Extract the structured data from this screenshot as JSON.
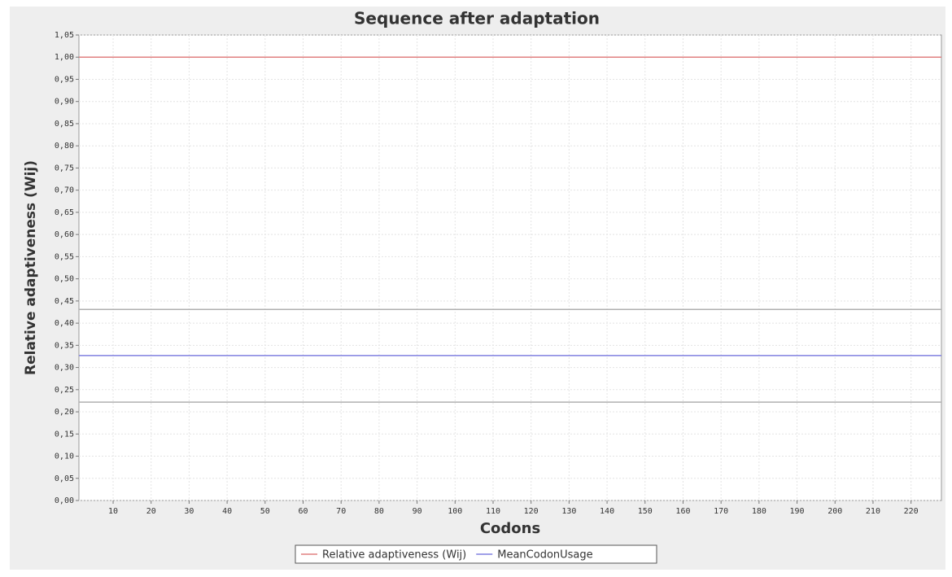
{
  "chart_data": {
    "type": "line",
    "title": "Sequence after adaptation",
    "x_label": "Codons",
    "y_label": "Relative adaptiveness (Wij)",
    "x": [
      1,
      228
    ],
    "series": [
      {
        "name": "Relative adaptiveness (Wij)",
        "color": "#e08080",
        "values": [
          1.0,
          1.0
        ]
      },
      {
        "name": "MeanCodonUsage",
        "color": "#8080e0",
        "values": [
          0.327,
          0.327
        ]
      },
      {
        "color": "#b0b0b0",
        "values": [
          0.431,
          0.431
        ]
      },
      {
        "color": "#b0b0b0",
        "values": [
          0.222,
          0.222
        ]
      }
    ],
    "xlim": [
      1,
      228
    ],
    "xticks": [
      10,
      20,
      30,
      40,
      50,
      60,
      70,
      80,
      90,
      100,
      110,
      120,
      130,
      140,
      150,
      160,
      170,
      180,
      190,
      200,
      210,
      220
    ],
    "ylim": [
      0,
      1.05
    ],
    "yticks": [
      {
        "value": 0,
        "label": "0,00"
      },
      {
        "value": 0.05,
        "label": "0,05"
      },
      {
        "value": 0.1,
        "label": "0,10"
      },
      {
        "value": 0.15,
        "label": "0,15"
      },
      {
        "value": 0.2,
        "label": "0,20"
      },
      {
        "value": 0.25,
        "label": "0,25"
      },
      {
        "value": 0.3,
        "label": "0,30"
      },
      {
        "value": 0.35,
        "label": "0,35"
      },
      {
        "value": 0.4,
        "label": "0,40"
      },
      {
        "value": 0.45,
        "label": "0,45"
      },
      {
        "value": 0.5,
        "label": "0,50"
      },
      {
        "value": 0.55,
        "label": "0,55"
      },
      {
        "value": 0.6,
        "label": "0,60"
      },
      {
        "value": 0.65,
        "label": "0,65"
      },
      {
        "value": 0.7,
        "label": "0,70"
      },
      {
        "value": 0.75,
        "label": "0,75"
      },
      {
        "value": 0.8,
        "label": "0,80"
      },
      {
        "value": 0.85,
        "label": "0,85"
      },
      {
        "value": 0.9,
        "label": "0,90"
      },
      {
        "value": 0.95,
        "label": "0,95"
      },
      {
        "value": 1.0,
        "label": "1,00"
      },
      {
        "value": 1.05,
        "label": "1,05"
      }
    ],
    "grid": true
  }
}
